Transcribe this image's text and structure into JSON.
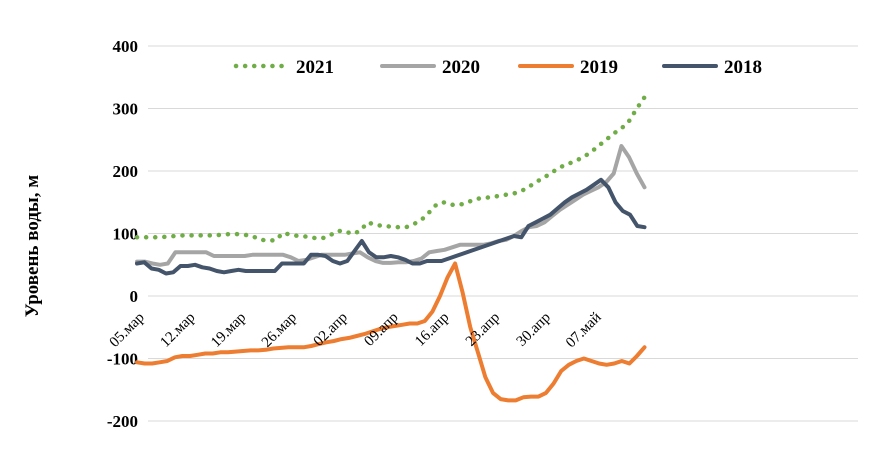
{
  "chart_data": {
    "type": "line",
    "ylabel": "Уровень воды, м",
    "ylim": [
      -200,
      400
    ],
    "yticks": [
      400,
      300,
      200,
      100,
      0,
      -100,
      -200
    ],
    "xticks": [
      "05.мар",
      "12.мар",
      "19.мар",
      "26.мар",
      "02.апр",
      "09.апр",
      "16.апр",
      "23.апр",
      "30.апр",
      "07.май"
    ],
    "x_start": "05.мар",
    "grid": "horizontal",
    "legend_position": "top",
    "series": [
      {
        "name": "2021",
        "color": "#70AD47",
        "style": "dotted",
        "values": [
          94,
          94,
          94,
          94,
          95,
          96,
          97,
          97,
          97,
          97,
          97,
          98,
          99,
          99,
          98,
          96,
          90,
          89,
          89,
          101,
          98,
          96,
          95,
          93,
          92,
          96,
          104,
          104,
          99,
          104,
          118,
          114,
          112,
          111,
          110,
          110,
          115,
          122,
          134,
          147,
          150,
          146,
          146,
          150,
          155,
          157,
          158,
          160,
          162,
          164,
          168,
          175,
          183,
          190,
          198,
          206,
          211,
          216,
          222,
          230,
          240,
          250,
          260,
          268,
          280,
          300,
          318
        ]
      },
      {
        "name": "2020",
        "color": "#A5A5A5",
        "style": "solid",
        "values": [
          55,
          55,
          52,
          50,
          52,
          70,
          70,
          70,
          70,
          70,
          64,
          64,
          64,
          64,
          64,
          66,
          66,
          66,
          66,
          66,
          62,
          56,
          58,
          62,
          66,
          66,
          66,
          66,
          68,
          70,
          62,
          56,
          53,
          53,
          54,
          54,
          56,
          60,
          70,
          72,
          74,
          78,
          82,
          82,
          82,
          82,
          84,
          88,
          90,
          96,
          104,
          110,
          112,
          118,
          128,
          138,
          146,
          154,
          162,
          168,
          174,
          182,
          196,
          240,
          222,
          196,
          174
        ]
      },
      {
        "name": "2019",
        "color": "#ED7D31",
        "style": "solid",
        "values": [
          -106,
          -108,
          -108,
          -106,
          -104,
          -98,
          -96,
          -96,
          -94,
          -92,
          -92,
          -90,
          -90,
          -89,
          -88,
          -87,
          -87,
          -86,
          -84,
          -83,
          -82,
          -82,
          -82,
          -80,
          -77,
          -74,
          -72,
          -69,
          -67,
          -64,
          -61,
          -57,
          -53,
          -50,
          -48,
          -46,
          -44,
          -44,
          -40,
          -25,
          0,
          30,
          52,
          5,
          -50,
          -90,
          -130,
          -155,
          -165,
          -167,
          -167,
          -162,
          -161,
          -161,
          -155,
          -140,
          -120,
          -110,
          -104,
          -100,
          -104,
          -108,
          -110,
          -108,
          -104,
          -108,
          -96,
          -82
        ]
      },
      {
        "name": "2018",
        "color": "#44546A",
        "style": "solid",
        "values": [
          52,
          54,
          44,
          42,
          36,
          38,
          48,
          48,
          50,
          46,
          44,
          40,
          38,
          40,
          42,
          40,
          40,
          40,
          40,
          40,
          52,
          52,
          52,
          52,
          66,
          66,
          64,
          56,
          52,
          56,
          72,
          88,
          70,
          62,
          62,
          64,
          62,
          58,
          52,
          52,
          56,
          56,
          56,
          60,
          64,
          68,
          72,
          76,
          80,
          84,
          88,
          92,
          96,
          94,
          112,
          118,
          124,
          130,
          140,
          150,
          158,
          164,
          170,
          178,
          186,
          174,
          150,
          136,
          130,
          112,
          110
        ]
      }
    ]
  }
}
